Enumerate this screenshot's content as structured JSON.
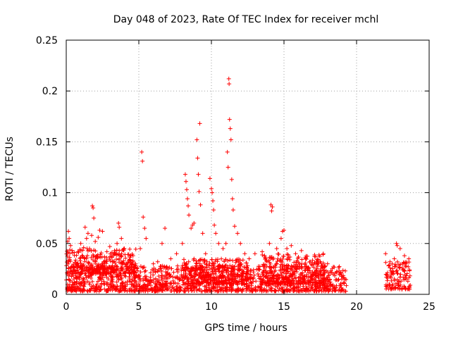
{
  "chart_data": {
    "type": "scatter",
    "title": "Day 048 of 2023, Rate Of TEC Index for receiver mchl",
    "xlabel": "GPS time / hours",
    "ylabel": "ROTI / TECUs",
    "xlim": [
      0,
      25
    ],
    "ylim": [
      0,
      0.25
    ],
    "x_ticks": [
      "0",
      "5",
      "10",
      "15",
      "20",
      "25"
    ],
    "y_ticks": [
      "0",
      "0.05",
      "0.1",
      "0.15",
      "0.2",
      "0.25"
    ],
    "grid": true,
    "marker": "+",
    "colors": {
      "points": "#ff0000",
      "grid": "#a0a0a0",
      "axes": "#000000"
    },
    "series": [
      {
        "values": [
          [
            0.1,
            0.052
          ],
          [
            0.15,
            0.062
          ],
          [
            0.2,
            0.055
          ],
          [
            0.25,
            0.034
          ],
          [
            0.3,
            0.048
          ],
          [
            0.8,
            0.042
          ],
          [
            1.0,
            0.05
          ],
          [
            1.2,
            0.046
          ],
          [
            1.3,
            0.066
          ],
          [
            1.4,
            0.055
          ],
          [
            1.5,
            0.06
          ],
          [
            1.6,
            0.045
          ],
          [
            1.75,
            0.058
          ],
          [
            1.8,
            0.087
          ],
          [
            1.85,
            0.085
          ],
          [
            1.9,
            0.075
          ],
          [
            2.0,
            0.052
          ],
          [
            2.2,
            0.056
          ],
          [
            2.3,
            0.063
          ],
          [
            2.5,
            0.062
          ],
          [
            2.8,
            0.042
          ],
          [
            3.0,
            0.047
          ],
          [
            3.3,
            0.04
          ],
          [
            3.5,
            0.05
          ],
          [
            3.6,
            0.07
          ],
          [
            3.65,
            0.066
          ],
          [
            3.8,
            0.055
          ],
          [
            4.0,
            0.045
          ],
          [
            4.5,
            0.03
          ],
          [
            4.6,
            0.038
          ],
          [
            5.1,
            0.045
          ],
          [
            5.2,
            0.14
          ],
          [
            5.25,
            0.131
          ],
          [
            5.3,
            0.076
          ],
          [
            5.4,
            0.065
          ],
          [
            5.5,
            0.055
          ],
          [
            6.0,
            0.03
          ],
          [
            6.3,
            0.032
          ],
          [
            6.6,
            0.05
          ],
          [
            6.8,
            0.065
          ],
          [
            7.2,
            0.035
          ],
          [
            7.6,
            0.04
          ],
          [
            8.0,
            0.05
          ],
          [
            8.2,
            0.118
          ],
          [
            8.25,
            0.111
          ],
          [
            8.3,
            0.103
          ],
          [
            8.35,
            0.094
          ],
          [
            8.4,
            0.087
          ],
          [
            8.45,
            0.078
          ],
          [
            8.6,
            0.065
          ],
          [
            8.7,
            0.068
          ],
          [
            8.8,
            0.07
          ],
          [
            9.0,
            0.152
          ],
          [
            9.05,
            0.134
          ],
          [
            9.1,
            0.118
          ],
          [
            9.15,
            0.101
          ],
          [
            9.2,
            0.168
          ],
          [
            9.25,
            0.088
          ],
          [
            9.4,
            0.06
          ],
          [
            9.6,
            0.04
          ],
          [
            9.9,
            0.114
          ],
          [
            10.0,
            0.104
          ],
          [
            10.05,
            0.1
          ],
          [
            10.1,
            0.092
          ],
          [
            10.15,
            0.083
          ],
          [
            10.2,
            0.068
          ],
          [
            10.3,
            0.06
          ],
          [
            10.5,
            0.05
          ],
          [
            10.8,
            0.045
          ],
          [
            11.0,
            0.05
          ],
          [
            11.1,
            0.14
          ],
          [
            11.15,
            0.125
          ],
          [
            11.2,
            0.212
          ],
          [
            11.22,
            0.207
          ],
          [
            11.25,
            0.172
          ],
          [
            11.3,
            0.163
          ],
          [
            11.35,
            0.152
          ],
          [
            11.4,
            0.113
          ],
          [
            11.45,
            0.094
          ],
          [
            11.5,
            0.083
          ],
          [
            11.6,
            0.067
          ],
          [
            11.8,
            0.06
          ],
          [
            12.0,
            0.05
          ],
          [
            12.3,
            0.04
          ],
          [
            12.6,
            0.035
          ],
          [
            13.0,
            0.04
          ],
          [
            13.5,
            0.042
          ],
          [
            14.0,
            0.05
          ],
          [
            14.1,
            0.088
          ],
          [
            14.15,
            0.082
          ],
          [
            14.2,
            0.086
          ],
          [
            14.5,
            0.045
          ],
          [
            14.8,
            0.055
          ],
          [
            14.9,
            0.062
          ],
          [
            15.0,
            0.063
          ],
          [
            15.2,
            0.045
          ],
          [
            15.5,
            0.048
          ],
          [
            15.8,
            0.04
          ],
          [
            16.2,
            0.043
          ],
          [
            16.5,
            0.035
          ],
          [
            16.8,
            0.032
          ],
          [
            17.2,
            0.03
          ],
          [
            17.6,
            0.028
          ],
          [
            18.0,
            0.03
          ],
          [
            18.4,
            0.027
          ],
          [
            18.8,
            0.023
          ],
          [
            19.2,
            0.015
          ],
          [
            22.0,
            0.04
          ],
          [
            22.3,
            0.032
          ],
          [
            22.6,
            0.035
          ],
          [
            22.75,
            0.05
          ],
          [
            22.8,
            0.048
          ],
          [
            23.0,
            0.045
          ],
          [
            23.3,
            0.038
          ],
          [
            23.6,
            0.035
          ]
        ],
        "bands": [
          [
            0.0,
            19.3,
            0.003,
            0.028
          ],
          [
            0.0,
            4.8,
            0.02,
            0.045
          ],
          [
            8.0,
            12.5,
            0.01,
            0.035
          ],
          [
            13.5,
            17.8,
            0.01,
            0.04
          ],
          [
            22.0,
            23.7,
            0.005,
            0.032
          ]
        ]
      }
    ]
  }
}
